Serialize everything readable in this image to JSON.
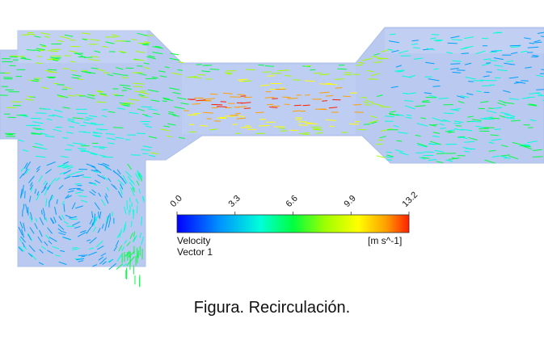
{
  "legend": {
    "ticks": [
      "0.0",
      "3.3",
      "6.6",
      "9.9",
      "13.2"
    ],
    "variable": "Velocity",
    "subtitle": "Vector 1",
    "unit": "[m s^-1]",
    "colors": [
      "#0000ff",
      "#00a0ff",
      "#00ffd8",
      "#00ff40",
      "#a0ff00",
      "#ffff00",
      "#ffa000",
      "#ff2000"
    ]
  },
  "caption": "Figura. Recirculación.",
  "colors": {
    "pipe": "#b9c9f0",
    "pipe_edge": "#aebfe8"
  }
}
